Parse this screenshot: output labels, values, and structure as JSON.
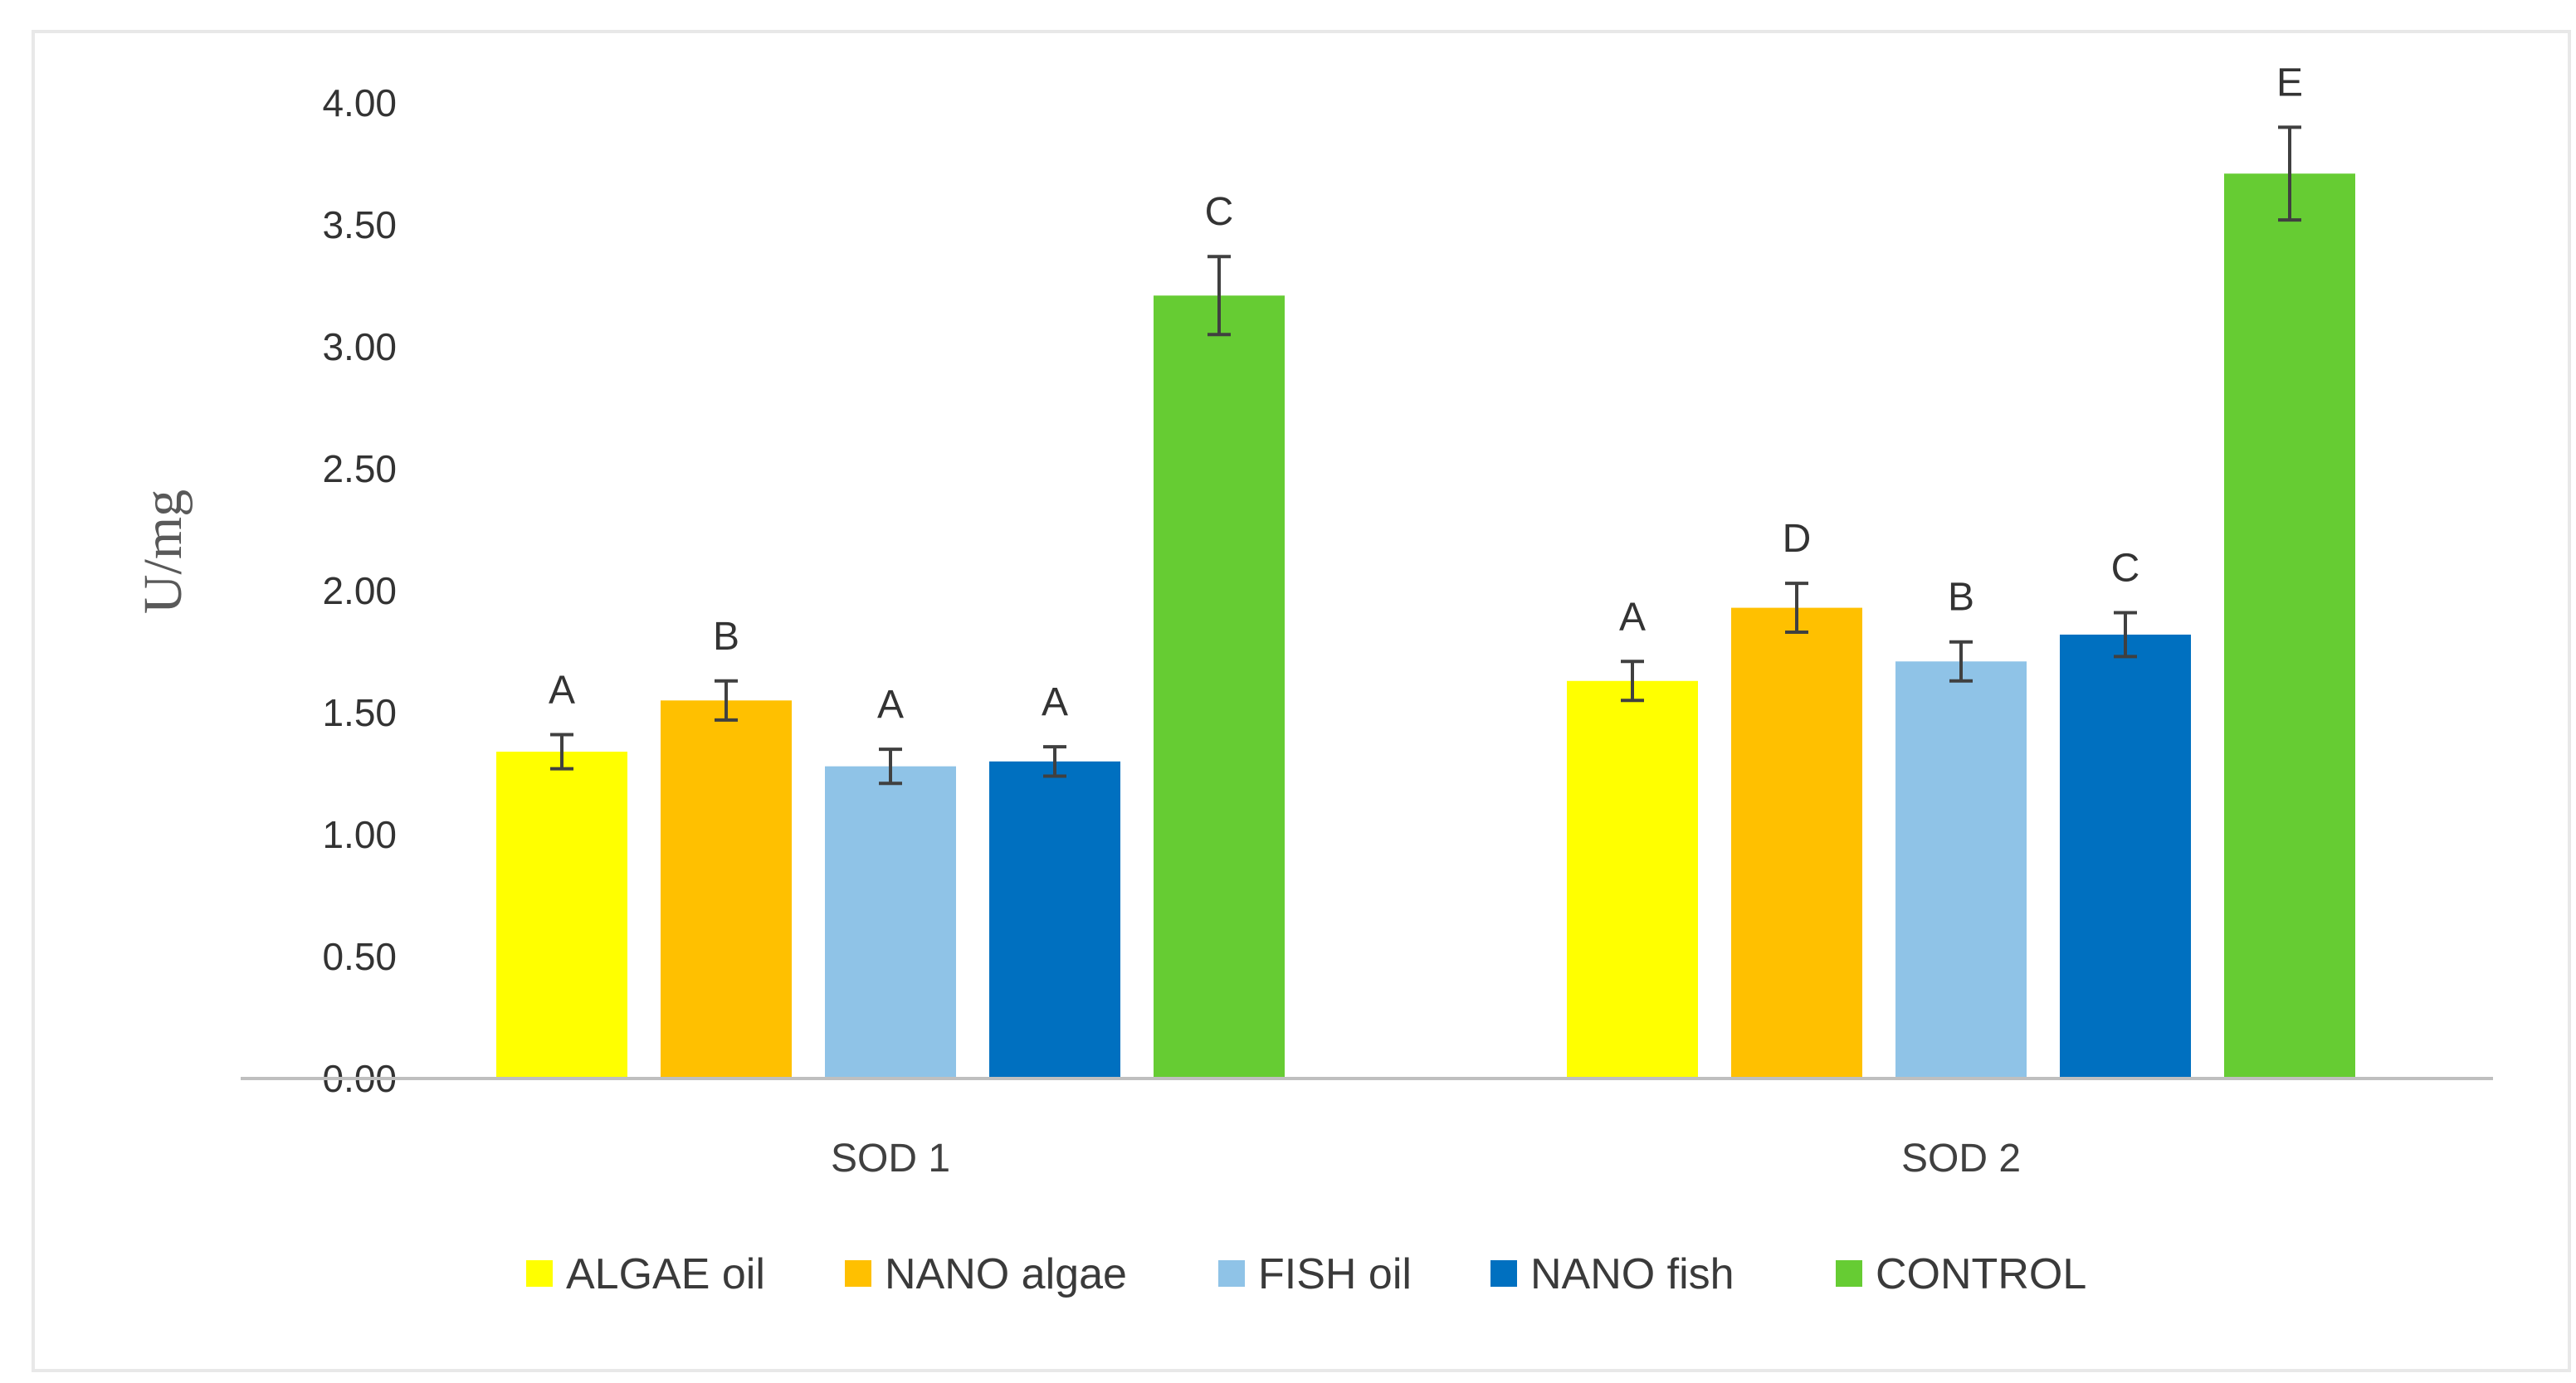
{
  "chart_data": {
    "type": "bar",
    "title": "",
    "xlabel": "",
    "ylabel": "U/mg",
    "ylim": [
      0,
      4
    ],
    "yticks": [
      "0.00",
      "0.50",
      "1.00",
      "1.50",
      "2.00",
      "2.50",
      "3.00",
      "3.50",
      "4.00"
    ],
    "categories": [
      "SOD 1",
      "SOD 2"
    ],
    "grid": false,
    "legend_position": "bottom",
    "series": [
      {
        "name": "ALGAE oil",
        "color": "#FFFF00",
        "values": [
          1.34,
          1.63
        ],
        "errors": [
          0.07,
          0.08
        ],
        "letters": [
          "A",
          "A"
        ]
      },
      {
        "name": "NANO algae",
        "color": "#FFC000",
        "values": [
          1.55,
          1.93
        ],
        "errors": [
          0.08,
          0.1
        ],
        "letters": [
          "B",
          "D"
        ]
      },
      {
        "name": "FISH oil",
        "color": "#8FC3E7",
        "values": [
          1.28,
          1.71
        ],
        "errors": [
          0.07,
          0.08
        ],
        "letters": [
          "A",
          "B"
        ]
      },
      {
        "name": "NANO fish",
        "color": "#0070C0",
        "values": [
          1.3,
          1.82
        ],
        "errors": [
          0.06,
          0.09
        ],
        "letters": [
          "A",
          "C"
        ]
      },
      {
        "name": "CONTROL",
        "color": "#66CC33",
        "values": [
          3.21,
          3.71
        ],
        "errors": [
          0.16,
          0.19
        ],
        "letters": [
          "C",
          "E"
        ]
      }
    ]
  }
}
